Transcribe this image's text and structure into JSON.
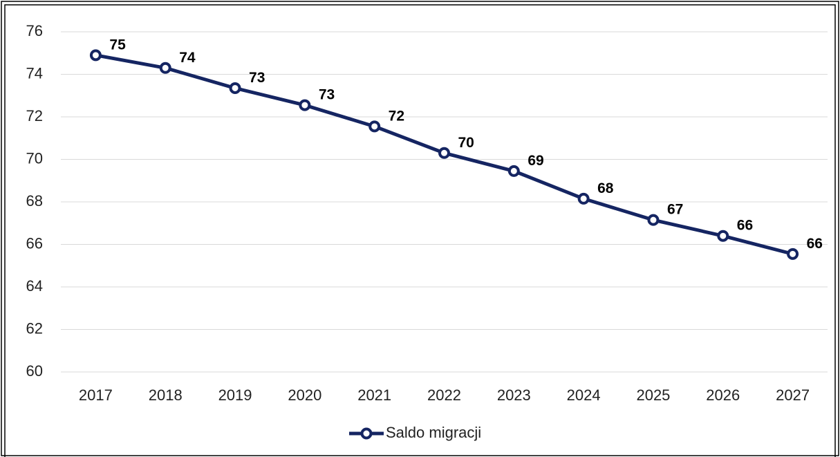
{
  "chart_data": {
    "type": "line",
    "categories": [
      "2017",
      "2018",
      "2019",
      "2020",
      "2021",
      "2022",
      "2023",
      "2024",
      "2025",
      "2026",
      "2027"
    ],
    "series": [
      {
        "name": "Saldo migracji",
        "color": "#152562",
        "values": [
          74.9,
          74.3,
          73.35,
          72.55,
          71.55,
          70.3,
          69.45,
          68.15,
          67.15,
          66.4,
          65.55
        ],
        "value_labels": [
          "75",
          "74",
          "73",
          "73",
          "72",
          "70",
          "69",
          "68",
          "67",
          "66",
          "66"
        ]
      }
    ],
    "ylim": [
      60,
      76
    ],
    "yticks": [
      60,
      62,
      64,
      66,
      68,
      70,
      72,
      74,
      76
    ],
    "grid": true,
    "legend": "bottom"
  }
}
